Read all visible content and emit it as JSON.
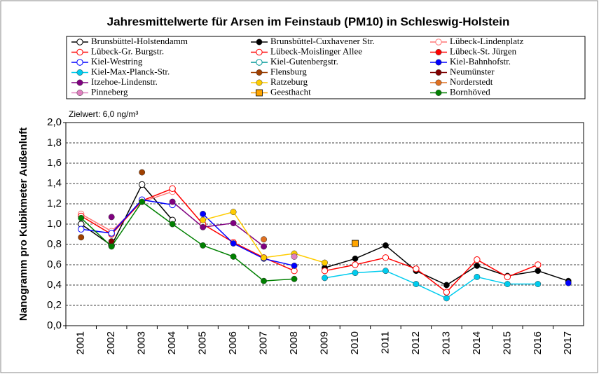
{
  "chart_data": {
    "type": "line",
    "title": "Jahresmittelwerte  für Arsen im Feinstaub (PM10) in Schleswig-Holstein",
    "y_label": "Nanogramm pro Kubikmeter Außenluft",
    "annotation": "Zielwert: 6,0 ng/m³",
    "categories": [
      "2001",
      "2002",
      "2003",
      "2004",
      "2005",
      "2006",
      "2007",
      "2008",
      "2009",
      "2010",
      "2011",
      "2012",
      "2013",
      "2014",
      "2015",
      "2016",
      "2017"
    ],
    "ylim": [
      0,
      2
    ],
    "yticks": [
      {
        "value": 0,
        "label": "0,0"
      },
      {
        "value": 0.2,
        "label": "0,2"
      },
      {
        "value": 0.4,
        "label": "0,4"
      },
      {
        "value": 0.6,
        "label": "0,6"
      },
      {
        "value": 0.8,
        "label": "0,8"
      },
      {
        "value": 1.0,
        "label": "1,0"
      },
      {
        "value": 1.2,
        "label": "1,2"
      },
      {
        "value": 1.4,
        "label": "1,4"
      },
      {
        "value": 1.6,
        "label": "1,6"
      },
      {
        "value": 1.8,
        "label": "1,8"
      },
      {
        "value": 2.0,
        "label": "2,0"
      }
    ],
    "grid": true,
    "series": [
      {
        "name": "Brunsbüttel-Holstendamm",
        "color": "#000000",
        "marker": "open-circle",
        "values": [
          1.0,
          0.79,
          1.39,
          1.04,
          null,
          null,
          null,
          null,
          null,
          null,
          null,
          null,
          null,
          null,
          null,
          null,
          null
        ]
      },
      {
        "name": "Brunsbüttel-Cuxhavener Str.",
        "color": "#000000",
        "marker": "circle",
        "values": [
          null,
          null,
          null,
          null,
          null,
          null,
          null,
          null,
          0.57,
          0.66,
          0.79,
          0.54,
          0.4,
          0.59,
          0.49,
          0.54,
          0.44
        ]
      },
      {
        "name": "Lübeck-Lindenplatz",
        "color": "#ff7777",
        "marker": "open-circle",
        "values": [
          1.1,
          0.93,
          1.22,
          1.32,
          null,
          null,
          null,
          null,
          null,
          null,
          null,
          null,
          null,
          null,
          null,
          null,
          null
        ]
      },
      {
        "name": "Lübeck-Gr. Burgstr.",
        "color": "#ff0000",
        "marker": "open-circle",
        "values": [
          1.08,
          0.9,
          1.23,
          1.35,
          1.0,
          0.82,
          0.67,
          0.54,
          null,
          null,
          null,
          null,
          null,
          null,
          null,
          null,
          null
        ]
      },
      {
        "name": "Lübeck-Moislinger Allee",
        "color": "#ff0000",
        "marker": "open-circle",
        "values": [
          null,
          null,
          null,
          null,
          null,
          null,
          null,
          null,
          0.54,
          0.6,
          0.67,
          0.56,
          0.33,
          0.65,
          0.48,
          0.6,
          null
        ]
      },
      {
        "name": "Lübeck-St. Jürgen",
        "color": "#ff0000",
        "marker": "circle",
        "values": [
          null,
          null,
          null,
          null,
          null,
          null,
          null,
          null,
          null,
          null,
          null,
          null,
          null,
          null,
          null,
          null,
          null
        ]
      },
      {
        "name": "Kiel-Westring",
        "color": "#0000ff",
        "marker": "open-circle",
        "values": [
          0.95,
          0.91,
          1.24,
          1.19,
          null,
          null,
          null,
          null,
          null,
          null,
          null,
          null,
          null,
          null,
          null,
          null,
          null
        ]
      },
      {
        "name": "Kiel-Gutenbergstr.",
        "color": "#009999",
        "marker": "open-circle",
        "values": [
          null,
          null,
          null,
          null,
          null,
          null,
          null,
          null,
          null,
          null,
          null,
          null,
          null,
          null,
          null,
          null,
          null
        ]
      },
      {
        "name": "Kiel-Bahnhofstr.",
        "color": "#0000ff",
        "marker": "circle",
        "values": [
          null,
          null,
          null,
          null,
          1.1,
          0.81,
          0.66,
          0.59,
          null,
          null,
          null,
          null,
          null,
          null,
          null,
          null,
          0.42
        ]
      },
      {
        "name": "Kiel-Max-Planck-Str.",
        "color": "#00ccee",
        "marker": "circle",
        "values": [
          null,
          null,
          null,
          null,
          null,
          null,
          null,
          null,
          0.47,
          0.52,
          0.54,
          0.41,
          0.27,
          0.48,
          0.41,
          0.41,
          null
        ]
      },
      {
        "name": "Flensburg",
        "color": "#a04000",
        "marker": "circle",
        "values": [
          0.87,
          null,
          1.51,
          null,
          null,
          null,
          null,
          null,
          null,
          null,
          null,
          null,
          null,
          null,
          null,
          null,
          null
        ]
      },
      {
        "name": "Neumünster",
        "color": "#800000",
        "marker": "circle",
        "values": [
          null,
          0.83,
          null,
          null,
          null,
          null,
          null,
          null,
          null,
          null,
          null,
          null,
          null,
          null,
          null,
          null,
          null
        ]
      },
      {
        "name": "Itzehoe-Lindenstr.",
        "color": "#800080",
        "marker": "circle",
        "values": [
          null,
          1.07,
          null,
          1.22,
          0.97,
          1.01,
          0.78,
          null,
          null,
          null,
          null,
          null,
          null,
          null,
          null,
          null,
          null
        ]
      },
      {
        "name": "Ratzeburg",
        "color": "#ffcc00",
        "marker": "circle",
        "values": [
          null,
          null,
          null,
          null,
          1.04,
          1.12,
          0.67,
          0.71,
          0.62,
          null,
          null,
          null,
          null,
          null,
          null,
          null,
          null
        ]
      },
      {
        "name": "Norderstedt",
        "color": "#e07020",
        "marker": "circle",
        "values": [
          null,
          null,
          null,
          null,
          null,
          null,
          0.85,
          null,
          null,
          null,
          null,
          null,
          null,
          null,
          null,
          null,
          null
        ]
      },
      {
        "name": "Pinneberg",
        "color": "#e080c0",
        "marker": "circle",
        "values": [
          null,
          null,
          null,
          null,
          null,
          null,
          null,
          0.68,
          null,
          null,
          null,
          null,
          null,
          null,
          null,
          null,
          null
        ]
      },
      {
        "name": "Geesthacht",
        "color": "#ffa500",
        "marker": "square",
        "values": [
          null,
          null,
          null,
          null,
          null,
          null,
          null,
          null,
          null,
          0.81,
          null,
          null,
          null,
          null,
          null,
          null,
          null
        ]
      },
      {
        "name": "Bornhöved",
        "color": "#008000",
        "marker": "circle",
        "values": [
          1.06,
          0.78,
          1.22,
          1.0,
          0.79,
          0.68,
          0.44,
          0.46,
          null,
          null,
          null,
          null,
          null,
          null,
          null,
          null,
          null
        ]
      }
    ]
  }
}
